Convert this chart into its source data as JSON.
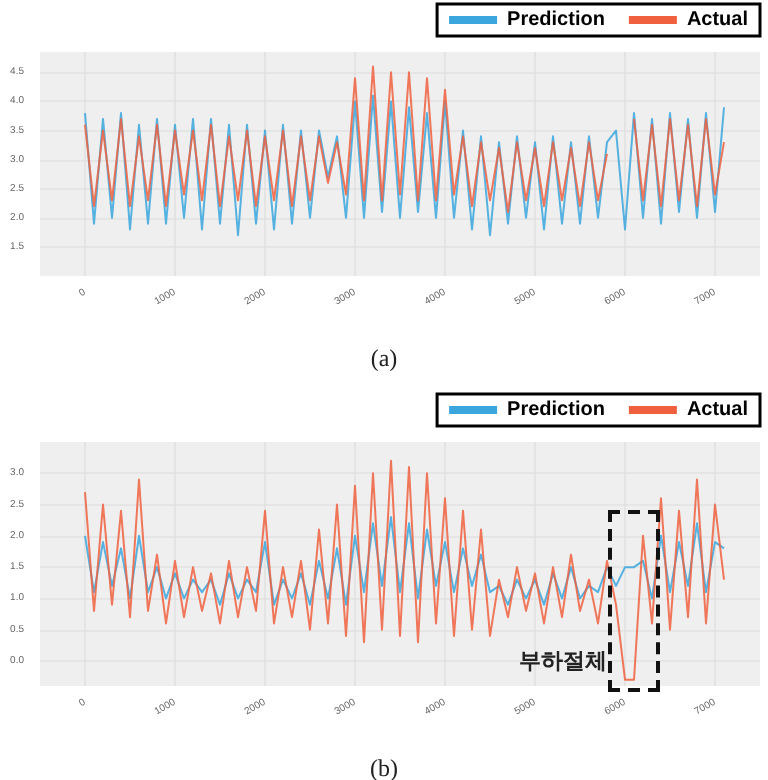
{
  "chart_data": [
    {
      "type": "line",
      "annotations": [
        "(a)"
      ],
      "legend": "top right",
      "grid": true,
      "x": [
        0,
        100,
        200,
        300,
        400,
        500,
        600,
        700,
        800,
        900,
        1000,
        1100,
        1200,
        1300,
        1400,
        1500,
        1600,
        1700,
        1800,
        1900,
        2000,
        2100,
        2200,
        2300,
        2400,
        2500,
        2600,
        2700,
        2800,
        2900,
        3000,
        3100,
        3200,
        3300,
        3400,
        3500,
        3600,
        3700,
        3800,
        3900,
        4000,
        4100,
        4200,
        4300,
        4400,
        4500,
        4600,
        4700,
        4800,
        4900,
        5000,
        5100,
        5200,
        5300,
        5400,
        5500,
        5600,
        5700,
        5800,
        5900,
        6000,
        6100,
        6200,
        6300,
        6400,
        6500,
        6600,
        6700,
        6800,
        6900,
        7000,
        7100
      ],
      "xlim": [
        -500,
        7500
      ],
      "xticks": [
        0,
        1000,
        2000,
        3000,
        4000,
        5000,
        6000,
        7000
      ],
      "ylim": [
        1.0,
        4.85
      ],
      "yticks": [
        1.5,
        {
          "value": 2,
          "label": "2.0"
        },
        2.5,
        {
          "value": 3,
          "label": "3.0"
        },
        3.5,
        {
          "value": 4,
          "label": "4.0"
        },
        4.5
      ],
      "series": [
        {
          "name": "Prediction",
          "color": "#3aa6dd",
          "values": [
            3.8,
            1.9,
            3.7,
            2.0,
            3.8,
            1.8,
            3.6,
            1.9,
            3.7,
            1.9,
            3.6,
            2.0,
            3.7,
            1.8,
            3.7,
            1.9,
            3.6,
            1.7,
            3.6,
            1.9,
            3.5,
            1.8,
            3.6,
            1.9,
            3.5,
            2.0,
            3.5,
            2.7,
            3.4,
            2.0,
            4.0,
            2.0,
            4.1,
            2.1,
            4.0,
            2.0,
            3.9,
            2.1,
            3.8,
            2.0,
            4.0,
            2.0,
            3.5,
            1.8,
            3.4,
            1.7,
            3.3,
            1.9,
            3.4,
            2.0,
            3.3,
            1.8,
            3.4,
            1.9,
            3.3,
            1.9,
            3.4,
            2.0,
            3.3,
            3.5,
            1.8,
            3.8,
            2.0,
            3.7,
            1.9,
            3.8,
            2.1,
            3.7,
            2.0,
            3.8,
            2.1,
            3.9
          ]
        },
        {
          "name": "Actual",
          "color": "#f0603e",
          "values": [
            3.6,
            2.2,
            3.5,
            2.3,
            3.7,
            2.2,
            3.4,
            2.3,
            3.6,
            2.2,
            3.5,
            2.4,
            3.5,
            2.3,
            3.6,
            2.2,
            3.4,
            2.3,
            3.5,
            2.2,
            3.4,
            2.3,
            3.5,
            2.2,
            3.4,
            2.3,
            3.4,
            2.6,
            3.3,
            2.4,
            4.4,
            2.3,
            4.6,
            2.3,
            4.5,
            2.4,
            4.5,
            2.3,
            4.4,
            2.3,
            4.2,
            2.4,
            3.4,
            2.2,
            3.3,
            2.3,
            3.2,
            2.1,
            3.3,
            2.3,
            3.2,
            2.2,
            3.3,
            2.3,
            3.2,
            2.2,
            3.3,
            2.3,
            3.1,
            null,
            null,
            3.7,
            2.3,
            3.6,
            2.2,
            3.7,
            2.3,
            3.6,
            2.2,
            3.7,
            2.4,
            3.3
          ]
        }
      ]
    },
    {
      "type": "line",
      "annotations": [
        "부하절체",
        "(b)"
      ],
      "legend": "top right",
      "grid": true,
      "x": [
        0,
        100,
        200,
        300,
        400,
        500,
        600,
        700,
        800,
        900,
        1000,
        1100,
        1200,
        1300,
        1400,
        1500,
        1600,
        1700,
        1800,
        1900,
        2000,
        2100,
        2200,
        2300,
        2400,
        2500,
        2600,
        2700,
        2800,
        2900,
        3000,
        3100,
        3200,
        3300,
        3400,
        3500,
        3600,
        3700,
        3800,
        3900,
        4000,
        4100,
        4200,
        4300,
        4400,
        4500,
        4600,
        4700,
        4800,
        4900,
        5000,
        5100,
        5200,
        5300,
        5400,
        5500,
        5600,
        5700,
        5800,
        5900,
        6000,
        6100,
        6200,
        6300,
        6400,
        6500,
        6600,
        6700,
        6800,
        6900,
        7000,
        7100
      ],
      "xlim": [
        -500,
        7500
      ],
      "xticks": [
        0,
        1000,
        2000,
        3000,
        4000,
        5000,
        6000,
        7000
      ],
      "ylim": [
        -0.4,
        3.5
      ],
      "yticks": [
        {
          "value": 0,
          "label": "0.0"
        },
        0.5,
        {
          "value": 1,
          "label": "1.0"
        },
        1.5,
        {
          "value": 2,
          "label": "2.0"
        },
        2.5,
        {
          "value": 3,
          "label": "3.0"
        }
      ],
      "series": [
        {
          "name": "Prediction",
          "color": "#3aa6dd",
          "values": [
            2.0,
            1.1,
            1.9,
            1.2,
            1.8,
            1.0,
            2.0,
            1.1,
            1.5,
            1.0,
            1.4,
            1.0,
            1.3,
            1.1,
            1.3,
            0.9,
            1.4,
            1.0,
            1.3,
            1.1,
            1.9,
            0.9,
            1.3,
            1.0,
            1.4,
            0.9,
            1.6,
            1.0,
            1.8,
            0.9,
            2.0,
            1.1,
            2.2,
            1.2,
            2.3,
            1.1,
            2.2,
            1.0,
            2.1,
            1.2,
            1.9,
            1.1,
            1.8,
            1.2,
            1.7,
            1.1,
            1.2,
            0.9,
            1.3,
            1.0,
            1.3,
            0.9,
            1.4,
            1.0,
            1.5,
            1.0,
            1.2,
            1.1,
            1.5,
            1.2,
            1.5,
            1.5,
            1.6,
            1.0,
            2.0,
            1.1,
            1.9,
            1.2,
            2.2,
            1.1,
            1.9,
            1.8
          ]
        },
        {
          "name": "Actual",
          "color": "#f0603e",
          "values": [
            2.7,
            0.8,
            2.5,
            0.9,
            2.4,
            0.7,
            2.9,
            0.8,
            1.7,
            0.6,
            1.6,
            0.7,
            1.5,
            0.8,
            1.4,
            0.6,
            1.6,
            0.7,
            1.5,
            0.8,
            2.4,
            0.6,
            1.5,
            0.7,
            1.6,
            0.5,
            2.1,
            0.6,
            2.5,
            0.4,
            2.8,
            0.3,
            3.0,
            0.5,
            3.2,
            0.4,
            3.1,
            0.3,
            3.0,
            0.6,
            2.6,
            0.4,
            2.4,
            0.5,
            2.1,
            0.4,
            1.3,
            0.7,
            1.5,
            0.8,
            1.4,
            0.6,
            1.5,
            0.7,
            1.7,
            0.8,
            1.3,
            0.6,
            1.6,
            0.9,
            -0.3,
            -0.3,
            2.0,
            0.6,
            2.6,
            0.5,
            2.4,
            0.7,
            2.9,
            0.6,
            2.5,
            1.3
          ]
        }
      ]
    }
  ]
}
